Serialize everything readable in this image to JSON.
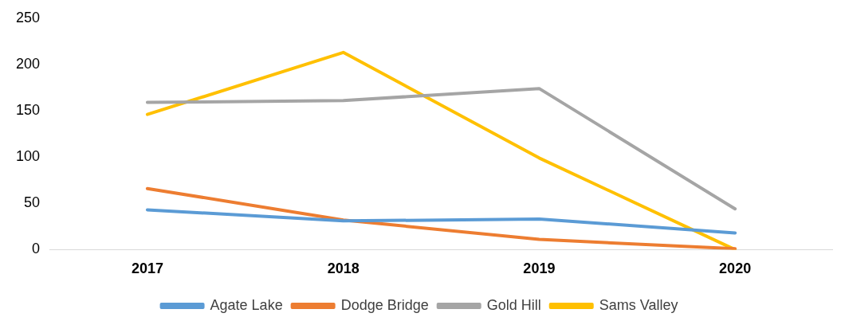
{
  "chart_data": {
    "type": "line",
    "categories": [
      "2017",
      "2018",
      "2019",
      "2020"
    ],
    "series": [
      {
        "name": "Agate Lake",
        "color": "#5b9bd5",
        "values": [
          43,
          31,
          33,
          18
        ]
      },
      {
        "name": "Dodge Bridge",
        "color": "#ed7d31",
        "values": [
          66,
          32,
          11,
          1
        ]
      },
      {
        "name": "Gold Hill",
        "color": "#a5a5a5",
        "values": [
          159,
          161,
          174,
          44
        ]
      },
      {
        "name": "Sams Valley",
        "color": "#ffc000",
        "values": [
          146,
          213,
          99,
          0
        ]
      }
    ],
    "ylim": [
      0,
      250
    ],
    "yticks": [
      0,
      50,
      100,
      150,
      200,
      250
    ],
    "grid": false,
    "legend": "bottom",
    "marker": "none",
    "line_style": "solid"
  }
}
